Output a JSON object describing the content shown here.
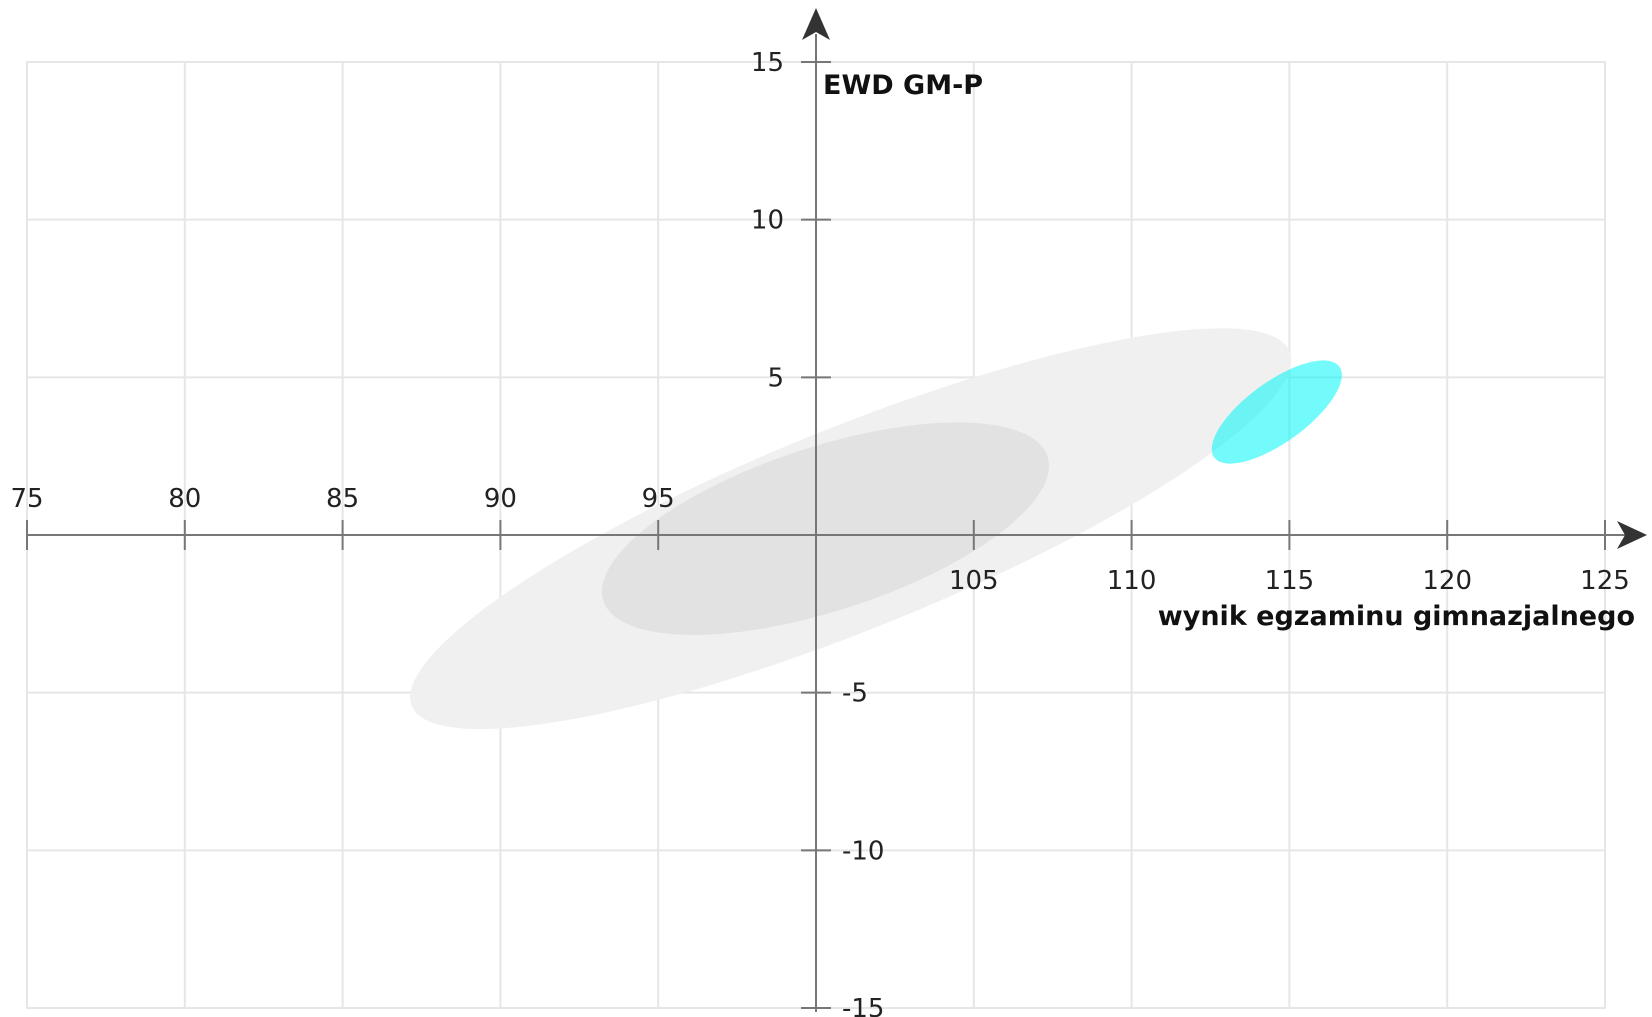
{
  "chart_data": {
    "type": "scatter",
    "title": "",
    "xlabel": "wynik egzaminu gimnazjalnego",
    "ylabel": "EWD GM-P",
    "xlim": [
      75,
      125
    ],
    "ylim": [
      -15,
      15
    ],
    "x_ticks": [
      75,
      80,
      85,
      90,
      95,
      105,
      110,
      115,
      120,
      125
    ],
    "y_ticks": [
      15,
      10,
      5,
      -5,
      -10,
      -15
    ],
    "x_ticks_above_axis": [
      75,
      80,
      85,
      90,
      95
    ],
    "x_ticks_below_axis": [
      105,
      110,
      115,
      120,
      125
    ],
    "axis_origin": {
      "x": 100,
      "y": 0
    },
    "grid": true,
    "ellipses": [
      {
        "name": "",
        "cx": 101.1,
        "cy": 0.2,
        "semi_major": 15.0,
        "semi_minor": 3.2,
        "angle_deg": 22,
        "color": "#f0f0f0",
        "opacity": 1.0
      },
      {
        "name": "",
        "cx": 100.3,
        "cy": 0.2,
        "semi_major": 7.4,
        "semi_minor": 2.6,
        "angle_deg": 18,
        "color": "#e2e2e2",
        "opacity": 1.0
      },
      {
        "name": "",
        "cx": 114.6,
        "cy": 3.9,
        "semi_major": 2.45,
        "semi_minor": 0.96,
        "angle_deg": 36,
        "color": "#00f5f5",
        "opacity": 0.55
      }
    ]
  },
  "colors": {
    "axis": "#777777",
    "grid": "#e6e6e6",
    "arrow": "#333333"
  }
}
